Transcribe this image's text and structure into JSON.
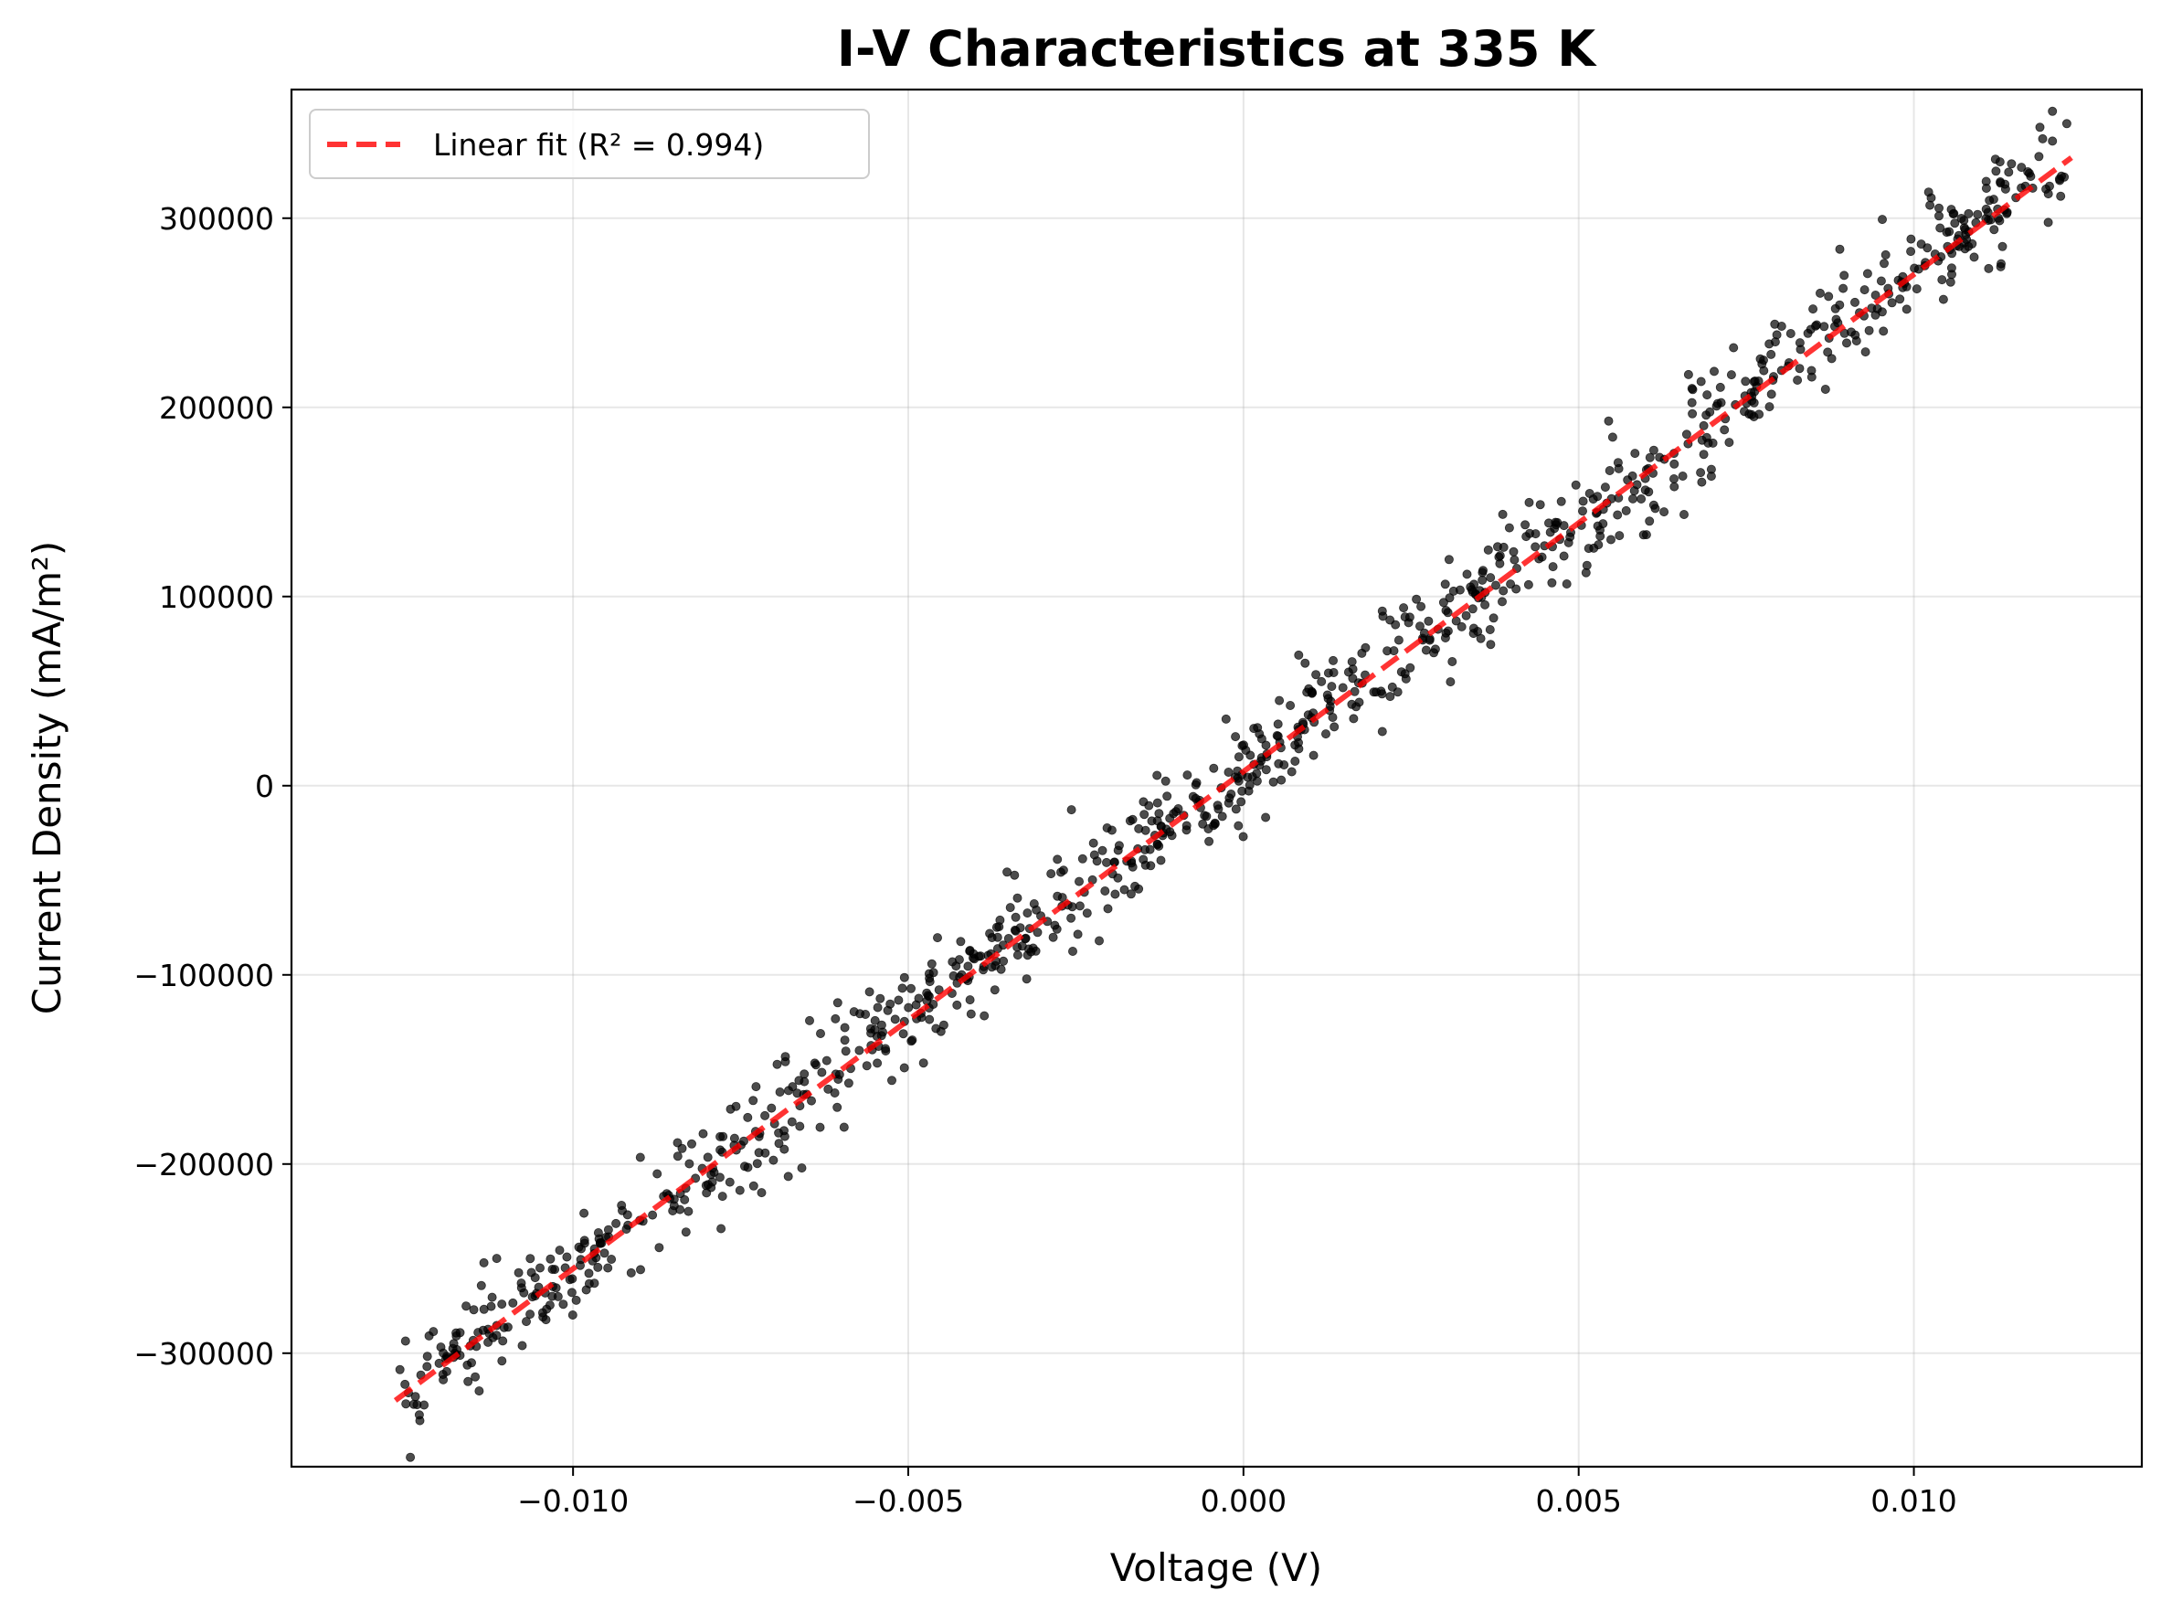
{
  "chart_data": {
    "type": "scatter",
    "title": "I-V Characteristics at 335 K",
    "xlabel": "Voltage (V)",
    "ylabel": "Current Density (mA/m²)",
    "xlim": [
      -0.0142,
      0.0134
    ],
    "ylim": [
      -360000,
      368000
    ],
    "x_ticks": [
      -0.01,
      -0.005,
      0.0,
      0.005,
      0.01
    ],
    "x_tick_labels": [
      "−0.010",
      "−0.005",
      "0.000",
      "0.005",
      "0.010"
    ],
    "y_ticks": [
      -300000,
      -200000,
      -100000,
      0,
      100000,
      200000,
      300000
    ],
    "y_tick_labels": [
      "−300000",
      "−200000",
      "−100000",
      "0",
      "100000",
      "200000",
      "300000"
    ],
    "grid": true,
    "legend_position": "top-left",
    "series": [
      {
        "name": "Linear fit (R² = 0.994)",
        "kind": "line",
        "style": "dashed",
        "color": "#ff0000",
        "x": [
          -0.01265,
          0.01235
        ],
        "y": [
          -325000,
          332000
        ]
      },
      {
        "name": "",
        "kind": "scatter",
        "color": "#000000",
        "n_points": 1000,
        "x_range": [
          -0.0126,
          0.0123
        ],
        "approx_slope": 26300000,
        "approx_intercept": 8000,
        "noise_std": 14000
      }
    ]
  }
}
